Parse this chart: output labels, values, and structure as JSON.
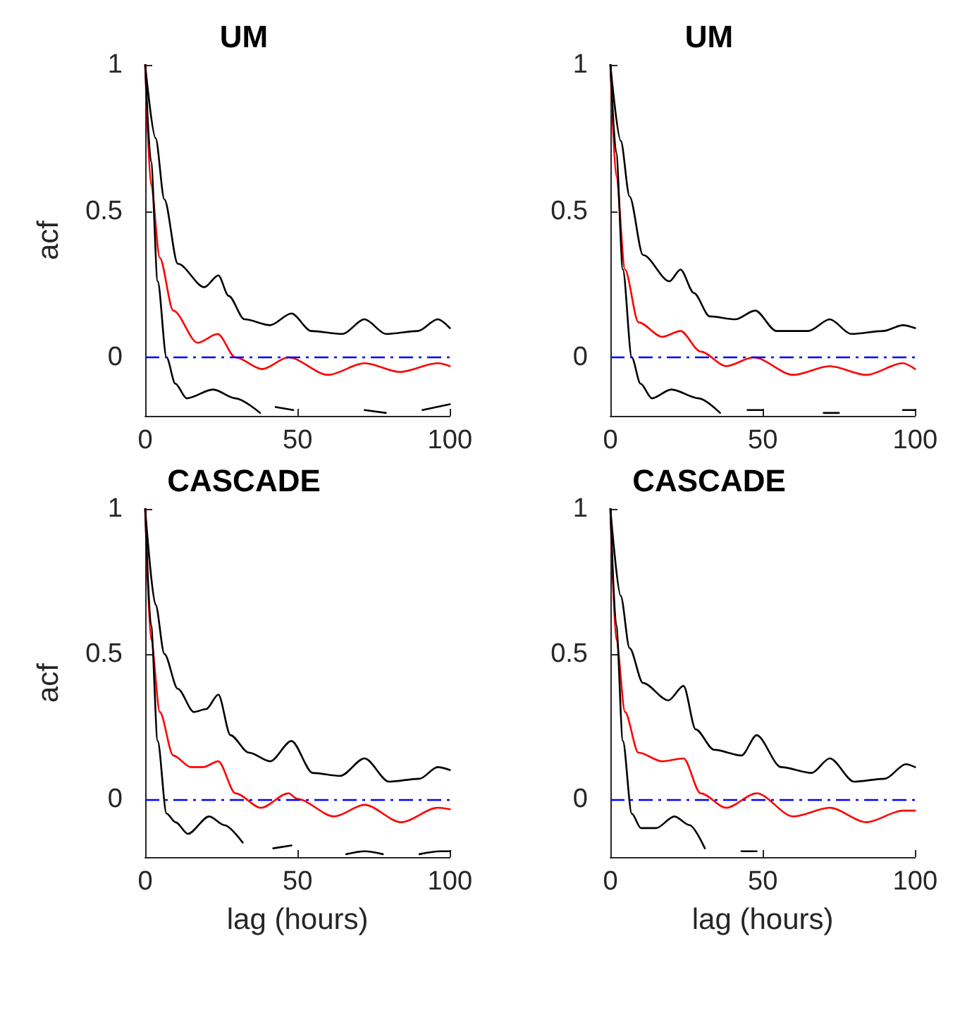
{
  "chart_data": [
    {
      "type": "line",
      "title": "UM",
      "ylabel": "acf",
      "xlim": [
        0,
        100
      ],
      "xticks": [
        0,
        50,
        100
      ],
      "ylim": [
        -0.2,
        1
      ],
      "yticks": [
        0,
        0.5,
        1
      ],
      "grid": false,
      "marker": "none",
      "ref_lines": [
        {
          "axis": "y",
          "value": 0,
          "color": "#0000ff",
          "line_style": "dashed"
        }
      ],
      "series": [
        {
          "color": "#000000",
          "x": [
            0,
            3.4,
            6.3,
            10.7,
            19.4,
            24,
            27.4,
            32.6,
            41,
            48,
            54.5,
            64.7,
            72,
            79,
            89.5,
            96,
            100
          ],
          "values": [
            1,
            0.75,
            0.54,
            0.32,
            0.24,
            0.28,
            0.21,
            0.13,
            0.11,
            0.15,
            0.09,
            0.08,
            0.13,
            0.08,
            0.09,
            0.13,
            0.1
          ]
        },
        {
          "color": "#ff0000",
          "x": [
            0,
            1.9,
            4.8,
            9.2,
            17.2,
            23.8,
            29.6,
            38.4,
            47,
            60,
            72,
            83.6,
            96,
            100
          ],
          "values": [
            1,
            0.59,
            0.34,
            0.16,
            0.05,
            0.08,
            0,
            -0.04,
            0,
            -0.06,
            -0.02,
            -0.05,
            -0.02,
            -0.03
          ]
        },
        {
          "color": "#000000",
          "x": [
            0,
            1.9,
            4.1,
            7,
            9.9,
            13.6,
            22.3,
            29.6,
            37.7,
            40,
            42.8,
            48.6,
            53,
            65,
            72,
            79,
            85,
            91,
            100
          ],
          "values": [
            1,
            0.67,
            0.26,
            0,
            -0.09,
            -0.14,
            -0.11,
            -0.14,
            -0.19,
            null,
            -0.17,
            -0.18,
            null,
            null,
            -0.18,
            -0.19,
            null,
            -0.18,
            -0.16
          ]
        }
      ]
    },
    {
      "type": "line",
      "title": "UM",
      "xlim": [
        0,
        100
      ],
      "xticks": [
        0,
        50,
        100
      ],
      "ylim": [
        -0.2,
        1
      ],
      "yticks": [
        0,
        0.5,
        1
      ],
      "grid": false,
      "marker": "none",
      "ref_lines": [
        {
          "axis": "y",
          "value": 0,
          "color": "#0000ff",
          "line_style": "dashed"
        }
      ],
      "series": [
        {
          "color": "#000000",
          "x": [
            0,
            3.4,
            6.3,
            10.7,
            19.4,
            23,
            27.4,
            32.6,
            41,
            47.5,
            54.5,
            65,
            72,
            79,
            89.5,
            96,
            100
          ],
          "values": [
            1,
            0.74,
            0.55,
            0.35,
            0.26,
            0.3,
            0.22,
            0.14,
            0.13,
            0.16,
            0.09,
            0.09,
            0.13,
            0.08,
            0.09,
            0.11,
            0.1
          ]
        },
        {
          "color": "#ff0000",
          "x": [
            0,
            1.9,
            4.8,
            9.2,
            17,
            23,
            29.6,
            38,
            47,
            60,
            72,
            84,
            96,
            100
          ],
          "values": [
            1,
            0.62,
            0.3,
            0.12,
            0.07,
            0.09,
            0.02,
            -0.03,
            0,
            -0.06,
            -0.03,
            -0.06,
            -0.02,
            -0.04
          ]
        },
        {
          "color": "#000000",
          "x": [
            0,
            1.9,
            4.1,
            7,
            9.9,
            13.6,
            20,
            29,
            36,
            39,
            45,
            50,
            55,
            65,
            70,
            75,
            80,
            90,
            96,
            100
          ],
          "values": [
            1,
            0.7,
            0.3,
            0,
            -0.09,
            -0.14,
            -0.11,
            -0.14,
            -0.19,
            null,
            -0.18,
            -0.18,
            null,
            null,
            -0.19,
            -0.19,
            null,
            null,
            -0.18,
            -0.18
          ]
        }
      ]
    },
    {
      "type": "line",
      "title": "CASCADE",
      "xlabel": "lag (hours)",
      "ylabel": "acf",
      "xlim": [
        0,
        100
      ],
      "xticks": [
        0,
        50,
        100
      ],
      "ylim": [
        -0.2,
        1
      ],
      "yticks": [
        0,
        0.5,
        1
      ],
      "grid": false,
      "marker": "none",
      "ref_lines": [
        {
          "axis": "y",
          "value": 0,
          "color": "#0000ff",
          "line_style": "dashed"
        }
      ],
      "series": [
        {
          "color": "#000000",
          "x": [
            0,
            3.4,
            6.3,
            10.7,
            16,
            20,
            24,
            28,
            34,
            41,
            48,
            55,
            64,
            72,
            80,
            90,
            96,
            100
          ],
          "values": [
            1,
            0.67,
            0.5,
            0.38,
            0.3,
            0.31,
            0.36,
            0.22,
            0.16,
            0.13,
            0.2,
            0.09,
            0.08,
            0.14,
            0.06,
            0.07,
            0.11,
            0.1
          ]
        },
        {
          "color": "#ff0000",
          "x": [
            0,
            1.9,
            4.8,
            9.2,
            15,
            19,
            24,
            29.6,
            38,
            47,
            50,
            62,
            72,
            84,
            96,
            100
          ],
          "values": [
            1,
            0.55,
            0.3,
            0.15,
            0.11,
            0.11,
            0.13,
            0.02,
            -0.03,
            0.02,
            0,
            -0.06,
            -0.02,
            -0.08,
            -0.03,
            -0.035
          ]
        },
        {
          "color": "#000000",
          "x": [
            0,
            1.9,
            4.1,
            7,
            10,
            14,
            21,
            26,
            32,
            37,
            42,
            48,
            55,
            66,
            72,
            78,
            84,
            90,
            97,
            100
          ],
          "values": [
            1,
            0.6,
            0.2,
            -0.05,
            -0.08,
            -0.12,
            -0.06,
            -0.09,
            -0.15,
            null,
            -0.17,
            -0.16,
            null,
            -0.19,
            -0.18,
            -0.19,
            null,
            -0.19,
            -0.18,
            -0.18
          ]
        }
      ]
    },
    {
      "type": "line",
      "title": "CASCADE",
      "xlabel": "lag (hours)",
      "xlim": [
        0,
        100
      ],
      "xticks": [
        0,
        50,
        100
      ],
      "ylim": [
        -0.2,
        1
      ],
      "yticks": [
        0,
        0.5,
        1
      ],
      "grid": false,
      "marker": "none",
      "ref_lines": [
        {
          "axis": "y",
          "value": 0,
          "color": "#0000ff",
          "line_style": "dashed"
        }
      ],
      "series": [
        {
          "color": "#000000",
          "x": [
            0,
            3.4,
            6.3,
            10.7,
            19,
            24,
            28,
            34,
            43,
            48,
            56,
            66,
            72,
            80,
            90,
            97,
            100
          ],
          "values": [
            1,
            0.7,
            0.52,
            0.4,
            0.34,
            0.39,
            0.24,
            0.17,
            0.15,
            0.22,
            0.11,
            0.09,
            0.14,
            0.06,
            0.07,
            0.12,
            0.11
          ]
        },
        {
          "color": "#ff0000",
          "x": [
            0,
            1.9,
            4.8,
            9.2,
            17,
            24,
            29.6,
            38,
            48,
            60,
            72,
            84,
            96,
            100
          ],
          "values": [
            1,
            0.55,
            0.3,
            0.16,
            0.13,
            0.14,
            0.02,
            -0.03,
            0.02,
            -0.06,
            -0.03,
            -0.08,
            -0.04,
            -0.04
          ]
        },
        {
          "color": "#000000",
          "x": [
            0,
            1.9,
            4.1,
            7,
            10,
            15,
            21,
            26,
            31,
            35,
            43,
            48
          ],
          "values": [
            1,
            0.6,
            0.2,
            -0.05,
            -0.1,
            -0.1,
            -0.06,
            -0.09,
            -0.17,
            null,
            -0.18,
            -0.18
          ]
        }
      ]
    }
  ]
}
